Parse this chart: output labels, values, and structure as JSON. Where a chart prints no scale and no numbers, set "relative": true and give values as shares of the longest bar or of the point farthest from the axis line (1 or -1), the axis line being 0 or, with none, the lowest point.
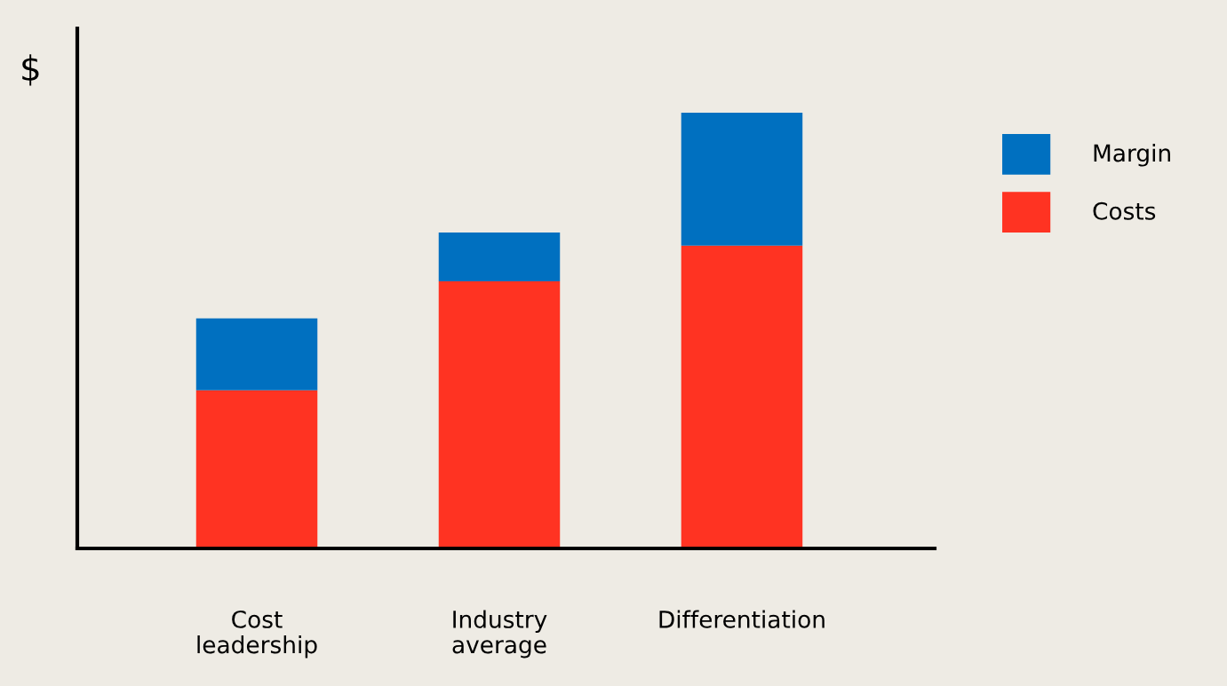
{
  "chart_data": {
    "type": "bar",
    "stacked": true,
    "relative": true,
    "ylabel": "$",
    "categories": [
      "Cost\nleadership",
      "Industry\naverage",
      "Differentiation"
    ],
    "series": [
      {
        "name": "Costs",
        "color": "#ff3322",
        "values": [
          0.363,
          0.613,
          0.695
        ]
      },
      {
        "name": "Margin",
        "color": "#0070c0",
        "values": [
          0.165,
          0.112,
          0.305
        ]
      }
    ],
    "legend": "top right",
    "grid": false
  }
}
